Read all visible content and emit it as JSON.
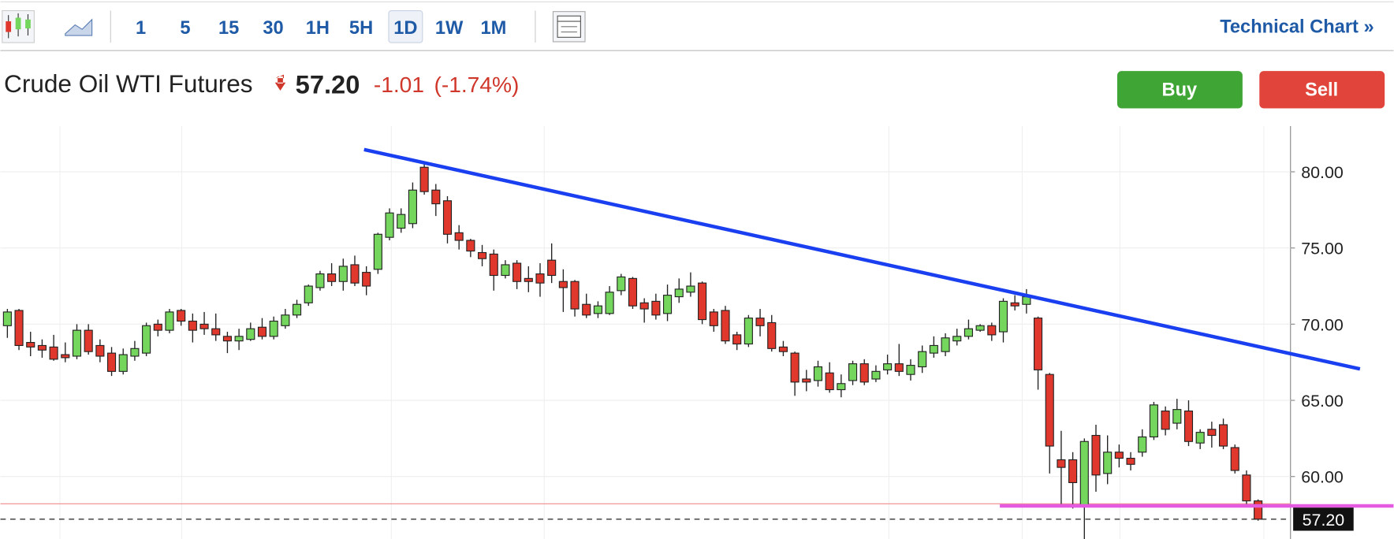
{
  "toolbar": {
    "intervals": [
      "1",
      "5",
      "15",
      "30",
      "1H",
      "5H",
      "1D",
      "1W",
      "1M"
    ],
    "selected": "1D",
    "link": "Technical Chart »"
  },
  "header": {
    "instrument": "Crude Oil WTI Futures",
    "price": "57.20",
    "change": "-1.01",
    "change_pct": "(-1.74%)",
    "buy": "Buy",
    "sell": "Sell"
  },
  "chart_data": {
    "type": "candlestick",
    "xlim": [
      -0.6,
      110.8
    ],
    "ylim": [
      55.9,
      83.0
    ],
    "yticks": [
      {
        "value": 60,
        "label": "60.00"
      },
      {
        "value": 65,
        "label": "65.00"
      },
      {
        "value": 70,
        "label": "70.00"
      },
      {
        "value": 75,
        "label": "75.00"
      },
      {
        "value": 80,
        "label": "80.00"
      }
    ],
    "grid": true,
    "colors": {
      "up": "#74d65d",
      "down": "#e0382c"
    },
    "candles": {
      "open": [
        69.9,
        70.9,
        68.8,
        68.6,
        68.5,
        68.0,
        67.9,
        69.6,
        68.6,
        68.1,
        66.9,
        67.9,
        68.1,
        70.0,
        69.6,
        70.9,
        70.2,
        70.0,
        69.7,
        69.2,
        68.9,
        69.0,
        69.8,
        69.2,
        69.9,
        70.6,
        71.4,
        72.4,
        73.3,
        72.8,
        73.9,
        73.4,
        73.6,
        75.7,
        76.3,
        76.6,
        80.3,
        78.8,
        78.1,
        76.0,
        75.5,
        74.7,
        74.6,
        73.2,
        74.0,
        73.0,
        73.3,
        74.2,
        72.8,
        72.8,
        71.3,
        70.7,
        70.7,
        72.2,
        73.0,
        71.4,
        71.5,
        70.7,
        71.8,
        72.1,
        72.7,
        70.8,
        70.9,
        69.3,
        68.7,
        70.4,
        70.1,
        68.5,
        68.1,
        66.4,
        66.3,
        66.8,
        65.7,
        66.3,
        67.4,
        66.4,
        67.0,
        67.4,
        66.7,
        67.2,
        68.1,
        68.2,
        68.9,
        69.2,
        69.6,
        69.9,
        69.5,
        71.4,
        71.3,
        70.4,
        66.7,
        61.1,
        61.1,
        58.1,
        62.7,
        60.2,
        61.6,
        61.2,
        61.6,
        62.6,
        64.3,
        63.5,
        64.3,
        62.2,
        63.1,
        63.4,
        61.9,
        60.1,
        58.4
      ],
      "high": [
        71.0,
        71.0,
        69.5,
        69.0,
        69.3,
        68.8,
        70.0,
        70.0,
        69.0,
        68.5,
        68.4,
        68.9,
        70.1,
        70.3,
        71.0,
        71.0,
        70.7,
        70.8,
        70.7,
        69.5,
        69.7,
        70.1,
        70.4,
        70.5,
        71.0,
        71.6,
        72.6,
        73.5,
        74.0,
        74.3,
        74.5,
        73.8,
        76.0,
        77.6,
        77.6,
        79.3,
        80.5,
        79.2,
        78.4,
        76.5,
        75.6,
        75.2,
        74.9,
        74.2,
        74.2,
        73.8,
        74.0,
        75.3,
        73.6,
        72.9,
        72.0,
        71.5,
        72.5,
        73.3,
        73.1,
        71.7,
        72.0,
        72.6,
        73.0,
        73.4,
        72.8,
        71.0,
        71.2,
        69.5,
        70.6,
        71.0,
        70.6,
        68.9,
        68.2,
        67.0,
        67.6,
        67.5,
        66.7,
        67.6,
        67.7,
        67.3,
        68.0,
        68.7,
        67.7,
        68.6,
        69.2,
        69.4,
        69.7,
        70.3,
        70.0,
        70.1,
        71.7,
        71.9,
        72.3,
        70.5,
        66.8,
        63.0,
        61.6,
        62.5,
        63.4,
        62.7,
        62.1,
        61.6,
        63.1,
        64.9,
        64.6,
        65.1,
        65.0,
        63.1,
        63.6,
        63.8,
        62.1,
        60.4,
        58.5
      ],
      "low": [
        69.1,
        68.3,
        67.9,
        67.8,
        67.6,
        67.5,
        67.7,
        68.0,
        67.5,
        66.6,
        66.7,
        67.6,
        67.9,
        69.2,
        69.4,
        69.9,
        68.8,
        69.3,
        68.9,
        68.1,
        68.3,
        68.9,
        69.0,
        69.0,
        69.7,
        70.4,
        71.2,
        72.2,
        72.5,
        72.2,
        72.5,
        71.9,
        73.3,
        75.5,
        76.0,
        76.3,
        78.5,
        77.1,
        75.3,
        74.9,
        74.4,
        73.8,
        72.2,
        73.0,
        72.3,
        72.1,
        71.8,
        72.7,
        70.8,
        70.5,
        70.4,
        70.4,
        70.6,
        71.9,
        71.0,
        70.1,
        70.3,
        70.2,
        71.4,
        71.8,
        70.0,
        69.5,
        68.7,
        68.3,
        68.5,
        69.2,
        68.2,
        67.9,
        65.3,
        65.6,
        65.9,
        65.5,
        65.2,
        66.0,
        66.0,
        66.2,
        66.7,
        66.6,
        66.3,
        66.8,
        67.8,
        67.9,
        68.6,
        69.0,
        69.5,
        68.9,
        68.8,
        70.9,
        70.7,
        65.7,
        60.2,
        58.2,
        57.9,
        55.9,
        59.0,
        59.5,
        60.6,
        60.4,
        61.3,
        62.4,
        62.7,
        63.1,
        62.0,
        61.8,
        61.9,
        61.8,
        60.2,
        58.2,
        57.1
      ],
      "close": [
        70.8,
        68.6,
        68.5,
        68.3,
        67.7,
        67.8,
        69.6,
        68.2,
        67.9,
        66.9,
        68.0,
        68.4,
        69.9,
        69.6,
        70.8,
        70.2,
        69.6,
        69.7,
        69.3,
        68.9,
        69.2,
        69.7,
        69.2,
        70.2,
        70.6,
        71.3,
        72.5,
        73.3,
        72.8,
        73.8,
        72.7,
        72.5,
        75.9,
        77.3,
        77.2,
        78.8,
        78.7,
        77.9,
        75.9,
        75.5,
        74.8,
        74.3,
        73.2,
        73.9,
        72.8,
        72.8,
        72.7,
        73.2,
        72.4,
        71.0,
        70.6,
        71.2,
        72.1,
        73.1,
        71.2,
        71.0,
        70.6,
        71.9,
        72.3,
        72.5,
        70.3,
        69.9,
        68.9,
        68.7,
        70.4,
        69.9,
        68.4,
        68.2,
        66.2,
        66.2,
        67.2,
        65.7,
        66.1,
        67.4,
        66.2,
        66.9,
        67.4,
        66.9,
        67.3,
        68.2,
        68.6,
        69.1,
        69.2,
        69.7,
        69.9,
        69.3,
        71.5,
        71.2,
        71.8,
        67.0,
        62.0,
        60.6,
        59.6,
        62.3,
        60.1,
        61.6,
        61.2,
        60.8,
        62.6,
        64.7,
        63.1,
        64.4,
        62.3,
        62.9,
        62.7,
        62.0,
        60.4,
        58.4,
        57.2
      ]
    },
    "trendlines": [
      {
        "color": "#1a3ff0",
        "from": [
          30.8,
          81.46
        ],
        "to": [
          116.8,
          67.06
        ]
      },
      {
        "color": "#e45ae0",
        "from": [
          85.7,
          58.07
        ],
        "to": [
          119.7,
          58.07
        ]
      }
    ],
    "prev_close": 58.21,
    "last_price": {
      "value": 57.2,
      "label": "57.20"
    }
  }
}
